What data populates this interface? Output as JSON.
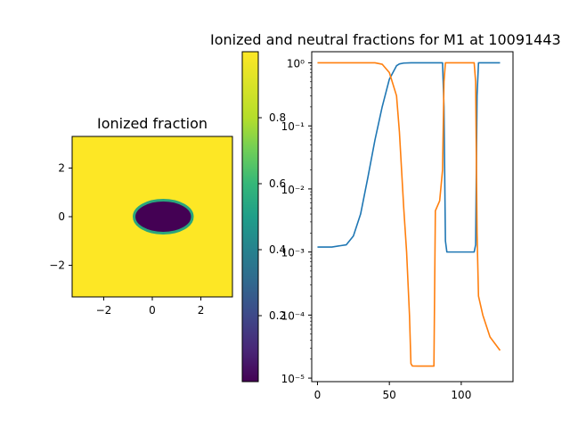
{
  "chart_data": [
    {
      "type": "heatmap",
      "title": "Ionized fraction",
      "xlabel": "",
      "ylabel": "",
      "xlim": [
        -3.3,
        3.3
      ],
      "ylim": [
        -3.3,
        3.3
      ],
      "xticks": [
        -2,
        0,
        2
      ],
      "yticks": [
        -2,
        0,
        2
      ],
      "background_value": 1.0,
      "ellipse_region": {
        "value": 0.0,
        "center": [
          0.45,
          0.0
        ],
        "semi_axis_x": 1.2,
        "semi_axis_y": 0.68
      },
      "colormap": "viridis",
      "colorbar": {
        "range": [
          0,
          1
        ],
        "ticks": [
          0.2,
          0.4,
          0.6,
          0.8
        ]
      }
    },
    {
      "type": "line",
      "title": "Ionized and neutral fractions for M1 at 10091443",
      "xlabel": "",
      "ylabel": "",
      "xlim": [
        -4,
        136
      ],
      "ylim": [
        8.8e-06,
        1.5
      ],
      "yscale": "log",
      "xticks": [
        0,
        50,
        100
      ],
      "yticks": [
        {
          "value": 1e-05,
          "label": "10⁻⁵"
        },
        {
          "value": 0.0001,
          "label": "10⁻⁴"
        },
        {
          "value": 0.001,
          "label": "10⁻³"
        },
        {
          "value": 0.01,
          "label": "10⁻²"
        },
        {
          "value": 0.1,
          "label": "10⁻¹"
        },
        {
          "value": 1,
          "label": "10⁰"
        }
      ],
      "series": [
        {
          "color": "#1f77b4",
          "x": [
            0,
            10,
            20,
            25,
            30,
            35,
            40,
            45,
            50,
            55,
            57,
            60,
            65,
            70,
            80,
            87,
            88,
            89,
            90,
            100,
            109,
            110,
            111,
            112,
            120,
            127
          ],
          "y": [
            0.0012,
            0.0012,
            0.0013,
            0.0018,
            0.004,
            0.015,
            0.06,
            0.2,
            0.55,
            0.9,
            0.96,
            0.99,
            1.0,
            1.0,
            1.0,
            1.0,
            0.2,
            0.0015,
            0.001,
            0.001,
            0.001,
            0.0013,
            0.3,
            1.0,
            1.0,
            1.0
          ]
        },
        {
          "color": "#ff7f0e",
          "x": [
            0,
            20,
            40,
            45,
            50,
            52,
            55,
            57,
            60,
            62,
            64,
            65,
            66,
            70,
            81,
            82,
            85,
            87,
            88,
            89,
            100,
            109,
            110,
            111,
            112,
            115,
            120,
            127
          ],
          "y": [
            1.0,
            1.0,
            1.0,
            0.95,
            0.7,
            0.5,
            0.3,
            0.08,
            0.005,
            0.001,
            0.0001,
            1.7e-05,
            1.56e-05,
            1.55e-05,
            1.55e-05,
            0.0045,
            0.0065,
            0.02,
            0.5,
            1.0,
            1.0,
            1.0,
            0.5,
            0.002,
            0.0002,
            0.0001,
            4.5e-05,
            2.75e-05
          ]
        }
      ]
    }
  ]
}
